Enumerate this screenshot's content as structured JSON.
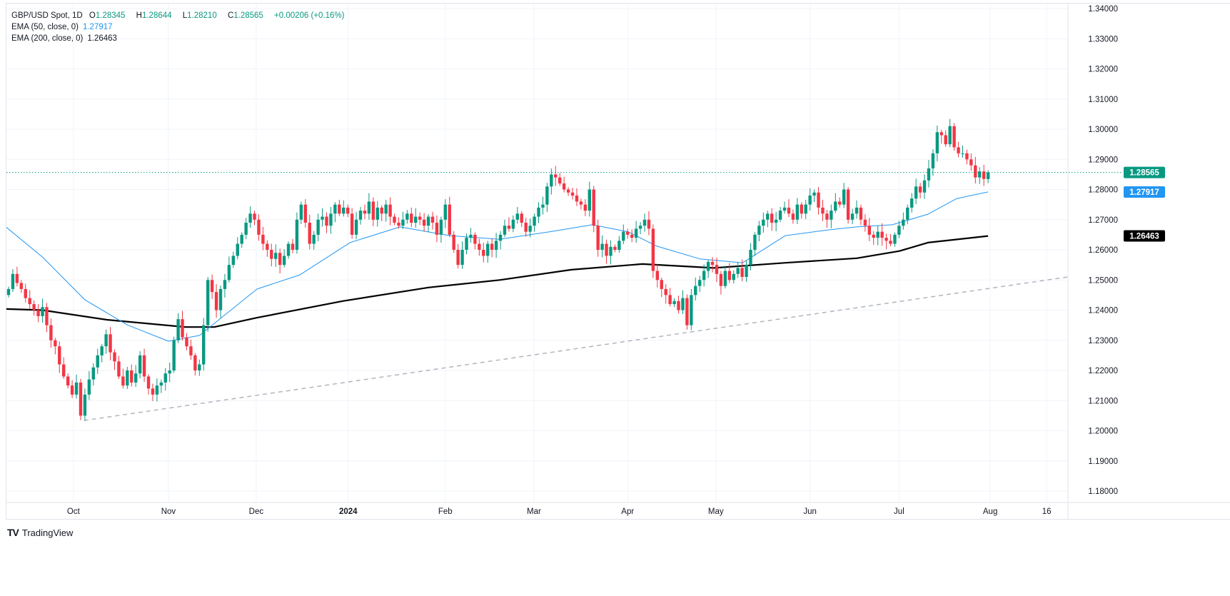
{
  "legend": {
    "symbol": "GBP/USD Spot, 1D",
    "o_label": "O",
    "open": "1.28345",
    "h_label": "H",
    "high": "1.28644",
    "l_label": "L",
    "low": "1.28210",
    "c_label": "C",
    "close": "1.28565",
    "change": "+0.00206 (+0.16%)",
    "ema50_label": "EMA (50, close, 0)",
    "ema50_value": "1.27917",
    "ema200_label": "EMA (200, close, 0)",
    "ema200_value": "1.26463"
  },
  "branding": {
    "name": "TradingView"
  },
  "colors": {
    "up": "#089981",
    "down": "#f23645",
    "ema50": "#2196f3",
    "ema200": "#000000",
    "grid": "#f0f3fa",
    "trendline": "#b2b5be"
  },
  "chart_data": {
    "type": "candlestick",
    "title": "GBP/USD Spot, 1D",
    "ylim": [
      1.18,
      1.34
    ],
    "yticks": [
      "1.34000",
      "1.33000",
      "1.32000",
      "1.31000",
      "1.30000",
      "1.29000",
      "1.28000",
      "1.27000",
      "1.26000",
      "1.25000",
      "1.24000",
      "1.23000",
      "1.22000",
      "1.21000",
      "1.20000",
      "1.19000",
      "1.18000"
    ],
    "xticks": [
      {
        "label": "Oct",
        "bar": 15.3
      },
      {
        "label": "Nov",
        "bar": 37.7
      },
      {
        "label": "Dec",
        "bar": 58.4
      },
      {
        "label": "2024",
        "bar": 80.1,
        "bold": true
      },
      {
        "label": "Feb",
        "bar": 103
      },
      {
        "label": "Mar",
        "bar": 123.9
      },
      {
        "label": "Apr",
        "bar": 146
      },
      {
        "label": "May",
        "bar": 166.8
      },
      {
        "label": "Jun",
        "bar": 189
      },
      {
        "label": "Jul",
        "bar": 210
      },
      {
        "label": "Aug",
        "bar": 231.5
      },
      {
        "label": "16",
        "bar": 244.8
      }
    ],
    "last_bar": {
      "open": 1.28345,
      "high": 1.28644,
      "low": 1.2821,
      "close": 1.28565
    },
    "closes": [
      1.247,
      1.252,
      1.249,
      1.247,
      1.244,
      1.242,
      1.24,
      1.238,
      1.241,
      1.235,
      1.23,
      1.228,
      1.222,
      1.218,
      1.215,
      1.212,
      1.216,
      1.205,
      1.212,
      1.217,
      1.221,
      1.225,
      1.228,
      1.232,
      1.226,
      1.223,
      1.218,
      1.215,
      1.22,
      1.216,
      1.219,
      1.225,
      1.218,
      1.214,
      1.212,
      1.215,
      1.216,
      1.219,
      1.22,
      1.23,
      1.237,
      1.231,
      1.228,
      1.225,
      1.22,
      1.222,
      1.235,
      1.25,
      1.246,
      1.24,
      1.247,
      1.25,
      1.255,
      1.258,
      1.262,
      1.265,
      1.269,
      1.272,
      1.27,
      1.265,
      1.262,
      1.26,
      1.257,
      1.259,
      1.255,
      1.258,
      1.262,
      1.26,
      1.27,
      1.275,
      1.269,
      1.262,
      1.265,
      1.27,
      1.271,
      1.268,
      1.272,
      1.275,
      1.272,
      1.274,
      1.272,
      1.265,
      1.27,
      1.273,
      1.272,
      1.276,
      1.27,
      1.274,
      1.272,
      1.275,
      1.271,
      1.269,
      1.268,
      1.27,
      1.272,
      1.269,
      1.271,
      1.27,
      1.268,
      1.271,
      1.269,
      1.265,
      1.27,
      1.275,
      1.265,
      1.26,
      1.255,
      1.26,
      1.264,
      1.265,
      1.262,
      1.26,
      1.258,
      1.262,
      1.26,
      1.263,
      1.265,
      1.268,
      1.267,
      1.27,
      1.272,
      1.269,
      1.266,
      1.268,
      1.271,
      1.274,
      1.275,
      1.281,
      1.285,
      1.284,
      1.282,
      1.28,
      1.279,
      1.278,
      1.276,
      1.275,
      1.273,
      1.28,
      1.268,
      1.26,
      1.262,
      1.258,
      1.261,
      1.26,
      1.263,
      1.266,
      1.265,
      1.264,
      1.267,
      1.268,
      1.27,
      1.267,
      1.253,
      1.25,
      1.247,
      1.245,
      1.242,
      1.243,
      1.24,
      1.244,
      1.235,
      1.245,
      1.248,
      1.25,
      1.253,
      1.256,
      1.255,
      1.252,
      1.248,
      1.253,
      1.25,
      1.252,
      1.254,
      1.251,
      1.255,
      1.26,
      1.265,
      1.268,
      1.27,
      1.272,
      1.269,
      1.27,
      1.273,
      1.274,
      1.272,
      1.27,
      1.275,
      1.272,
      1.275,
      1.278,
      1.279,
      1.274,
      1.272,
      1.27,
      1.273,
      1.276,
      1.275,
      1.28,
      1.27,
      1.272,
      1.274,
      1.27,
      1.268,
      1.265,
      1.264,
      1.266,
      1.264,
      1.263,
      1.262,
      1.265,
      1.268,
      1.27,
      1.274,
      1.277,
      1.281,
      1.279,
      1.283,
      1.287,
      1.292,
      1.299,
      1.298,
      1.295,
      1.301,
      1.294,
      1.292,
      1.292,
      1.29,
      1.288,
      1.284,
      1.286,
      1.2835,
      1.2857
    ],
    "ema50": [
      [
        -1,
        1.268
      ],
      [
        8,
        1.2576
      ],
      [
        18,
        1.2434
      ],
      [
        28,
        1.2351
      ],
      [
        37.7,
        1.2297
      ],
      [
        45,
        1.2316
      ],
      [
        48,
        1.235
      ],
      [
        58.6,
        1.247
      ],
      [
        68.7,
        1.2517
      ],
      [
        80.5,
        1.2624
      ],
      [
        92.3,
        1.2676
      ],
      [
        104,
        1.2647
      ],
      [
        115.8,
        1.2635
      ],
      [
        127.6,
        1.266
      ],
      [
        137.7,
        1.2683
      ],
      [
        146.1,
        1.266
      ],
      [
        152.9,
        1.2612
      ],
      [
        163,
        1.257
      ],
      [
        173.1,
        1.2557
      ],
      [
        183.2,
        1.2647
      ],
      [
        193.3,
        1.2666
      ],
      [
        200,
        1.2676
      ],
      [
        208.4,
        1.2683
      ],
      [
        216.8,
        1.2718
      ],
      [
        223.6,
        1.277
      ],
      [
        231,
        1.2792
      ]
    ],
    "ema200": [
      [
        -1,
        1.2404
      ],
      [
        8,
        1.24
      ],
      [
        23.2,
        1.2368
      ],
      [
        41.7,
        1.2344
      ],
      [
        48.5,
        1.2344
      ],
      [
        58.6,
        1.2375
      ],
      [
        78.8,
        1.243
      ],
      [
        99,
        1.2475
      ],
      [
        115.8,
        1.25
      ],
      [
        132.7,
        1.2534
      ],
      [
        149.5,
        1.2553
      ],
      [
        166.3,
        1.254
      ],
      [
        183.2,
        1.2557
      ],
      [
        200,
        1.2572
      ],
      [
        210.1,
        1.2596
      ],
      [
        216.8,
        1.2624
      ],
      [
        231,
        1.2646
      ]
    ],
    "trendline": [
      [
        17.8,
        1.2034
      ],
      [
        252.2,
        1.2515
      ]
    ],
    "price_labels": [
      {
        "name": "last-price",
        "value": 1.28565,
        "text": "1.28565",
        "color": "#089981"
      },
      {
        "name": "ema50",
        "value": 1.27917,
        "text": "1.27917",
        "color": "#2196f3"
      },
      {
        "name": "ema200",
        "value": 1.26463,
        "text": "1.26463",
        "color": "#000000"
      }
    ]
  }
}
